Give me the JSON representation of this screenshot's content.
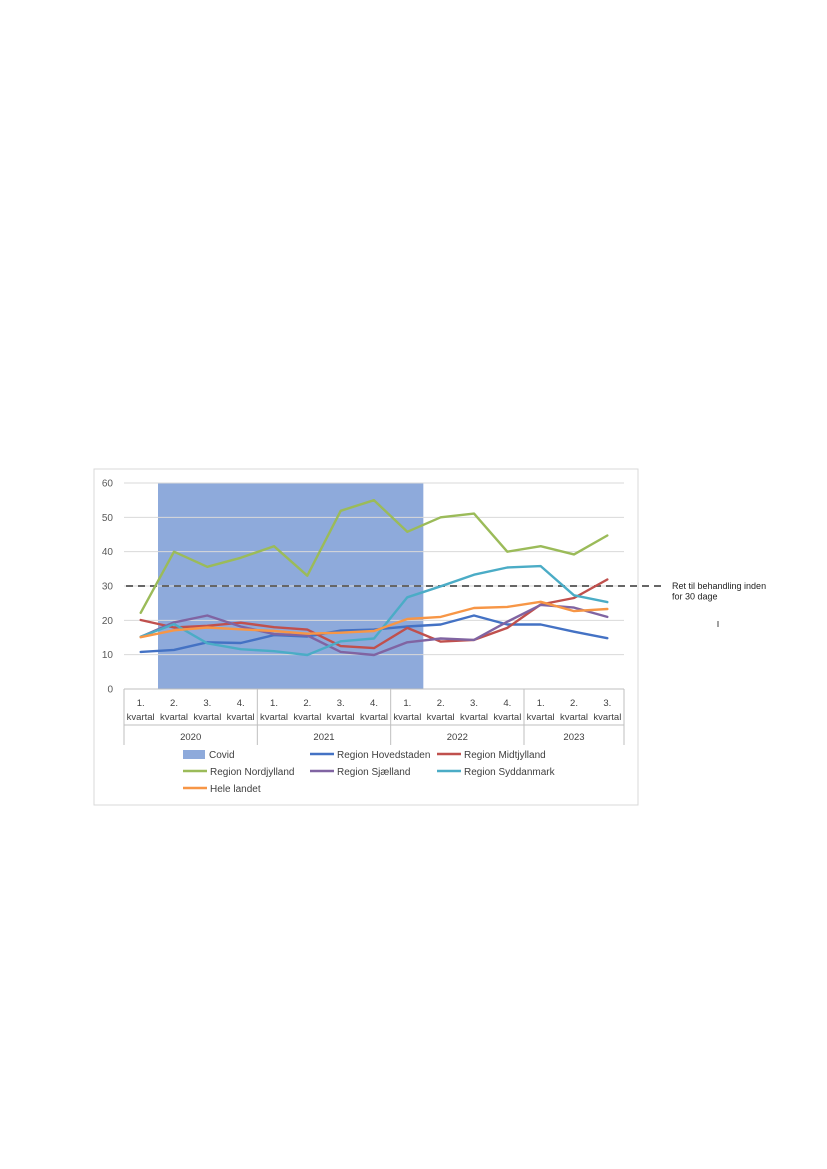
{
  "chart_data": {
    "type": "line",
    "ylim": [
      0,
      60
    ],
    "yticks": [
      0,
      10,
      20,
      30,
      40,
      50,
      60
    ],
    "categories": [
      "1. kvartal",
      "2. kvartal",
      "3. kvartal",
      "4. kvartal",
      "1. kvartal",
      "2. kvartal",
      "3. kvartal",
      "4. kvartal",
      "1. kvartal",
      "2. kvartal",
      "3. kvartal",
      "4. kvartal",
      "1. kvartal",
      "2. kvartal",
      "3. kvartal"
    ],
    "category_lines": [
      [
        "1.",
        "kvartal"
      ],
      [
        "2.",
        "kvartal"
      ],
      [
        "3.",
        "kvartal"
      ],
      [
        "4.",
        "kvartal"
      ],
      [
        "1.",
        "kvartal"
      ],
      [
        "2.",
        "kvartal"
      ],
      [
        "3.",
        "kvartal"
      ],
      [
        "4.",
        "kvartal"
      ],
      [
        "1.",
        "kvartal"
      ],
      [
        "2.",
        "kvartal"
      ],
      [
        "3.",
        "kvartal"
      ],
      [
        "4.",
        "kvartal"
      ],
      [
        "1.",
        "kvartal"
      ],
      [
        "2.",
        "kvartal"
      ],
      [
        "3.",
        "kvartal"
      ]
    ],
    "years": [
      {
        "label": "2020",
        "from": 0,
        "to": 3
      },
      {
        "label": "2021",
        "from": 4,
        "to": 7
      },
      {
        "label": "2022",
        "from": 8,
        "to": 11
      },
      {
        "label": "2023",
        "from": 12,
        "to": 14
      }
    ],
    "covid": {
      "name": "Covid",
      "color": "#8eaadb",
      "from": 1,
      "to": 8
    },
    "series": [
      {
        "name": "Region Hovedstaden",
        "color": "#4472c4",
        "values": [
          10.8,
          11.4,
          13.6,
          13.4,
          15.7,
          15.3,
          17.0,
          17.3,
          18.2,
          18.8,
          21.4,
          18.8,
          18.8,
          16.7,
          14.8
        ]
      },
      {
        "name": "Region Midtjylland",
        "color": "#c0504d",
        "values": [
          20.1,
          17.9,
          18.4,
          19.3,
          18.0,
          17.3,
          12.5,
          11.9,
          17.8,
          13.8,
          14.3,
          17.8,
          24.6,
          26.5,
          31.9
        ]
      },
      {
        "name": "Region Nordjylland",
        "color": "#9bbb59",
        "values": [
          22.2,
          40.0,
          35.6,
          38.2,
          41.6,
          33.0,
          51.9,
          55.0,
          45.8,
          50.0,
          51.1,
          40.0,
          41.6,
          39.2,
          44.7
        ]
      },
      {
        "name": "Region Sjælland",
        "color": "#8064a2",
        "values": [
          15.2,
          19.4,
          21.4,
          18.2,
          16.0,
          15.6,
          10.8,
          9.9,
          13.6,
          14.7,
          14.3,
          19.6,
          24.5,
          23.7,
          21.0
        ]
      },
      {
        "name": "Region Syddanmark",
        "color": "#4bacc6",
        "values": [
          15.2,
          18.9,
          13.3,
          11.6,
          11.0,
          9.9,
          13.9,
          14.7,
          26.7,
          29.9,
          33.3,
          35.4,
          35.8,
          27.3,
          25.3
        ]
      },
      {
        "name": "Hele landet",
        "color": "#f79646",
        "values": [
          15.1,
          17.1,
          17.9,
          17.4,
          16.9,
          16.1,
          16.4,
          16.9,
          20.4,
          21.0,
          23.6,
          23.9,
          25.4,
          22.7,
          23.3
        ]
      }
    ],
    "reference_line": {
      "value": 30,
      "label_lines": [
        "Ret til behandling inden",
        "for 30 dage"
      ],
      "color": "#666666"
    }
  }
}
